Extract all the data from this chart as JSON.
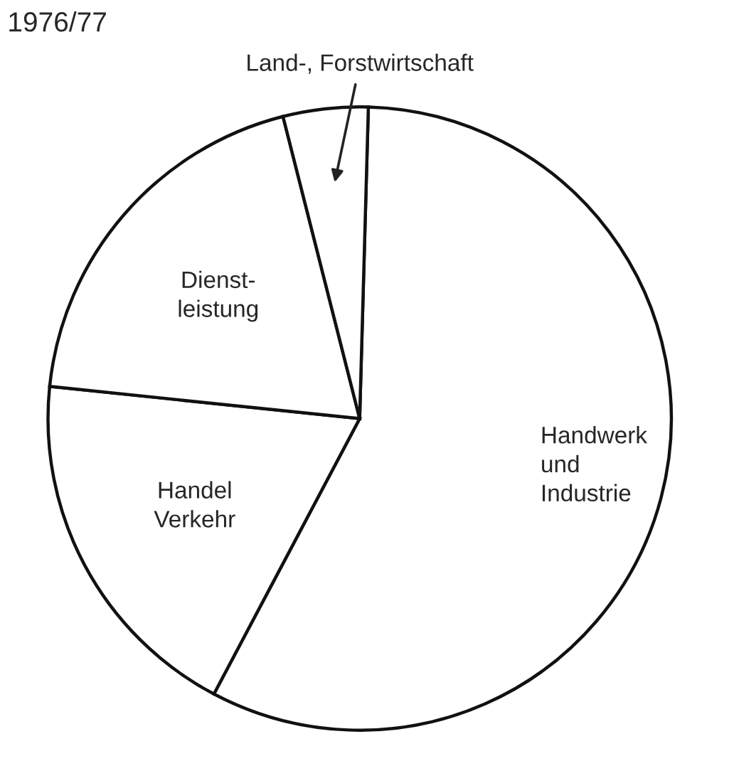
{
  "chart_data": {
    "type": "pie",
    "title": "1976/77",
    "categories": [
      "Handwerk\nund\nIndustrie",
      "Handel\nVerkehr",
      "Dienst-\nleistung",
      "Land-, Forstwirtschaft"
    ],
    "values": [
      57.3,
      18.9,
      19.4,
      4.4
    ],
    "colors": [
      "#ffffff",
      "#ffffff",
      "#ffffff",
      "#ffffff"
    ]
  }
}
